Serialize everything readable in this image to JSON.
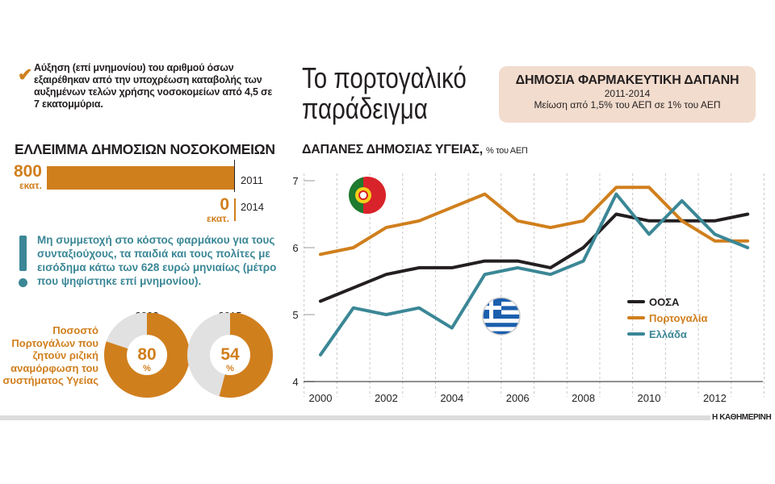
{
  "note1": {
    "icon": "check-icon",
    "text": "Αύξηση (επί μνημονίου) του αριθμού όσων εξαιρέθηκαν από την υποχρέωση καταβολής των αυξημένων τελών χρήσης νοσοκομείων από 4,5 σε 7 εκατομμύρια."
  },
  "deficit": {
    "title": "ΕΛΛΕΙΜΜΑ ΔΗΜΟΣΙΩΝ ΝΟΣΟΚΟΜΕΙΩΝ",
    "rows": [
      {
        "value": "800",
        "unit": "εκατ.",
        "year": "2011"
      },
      {
        "value": "0",
        "unit": "εκατ.",
        "year": "2014"
      }
    ]
  },
  "note2": {
    "icon": "exclamation-icon",
    "text": "Μη συμμετοχή στο κόστος φαρμάκου για τους συνταξιούχους, τα παιδιά και τους πολίτες με εισόδημα κάτω των 628 ευρώ μηνιαίως (μέτρο που ψηφίστηκε επί μνημονίου)."
  },
  "survey": {
    "label": "Ποσοστό Πορτογάλων που ζητούν ριζική αναμόρφωση του συστήματος Υγείας",
    "items": [
      {
        "year": "2002",
        "value": "80",
        "unit": "%"
      },
      {
        "year": "2015",
        "value": "54",
        "unit": "%"
      }
    ]
  },
  "title": {
    "line1": "Το πορτογαλικό",
    "line2": "παράδειγμα"
  },
  "box": {
    "title": "ΔΗΜΟΣΙΑ ΦΑΡΜΑΚΕΥΤΙΚΗ ΔΑΠΑΝΗ",
    "period": "2011-2014",
    "text": "Μείωση από 1,5% του ΑΕΠ σε 1% του ΑΕΠ"
  },
  "brand": "Η ΚΑΘΗΜΕΡΙΝΗ",
  "colors": {
    "orange": "#d07f1d",
    "teal": "#3b8796",
    "black": "#231f20",
    "box": "#f2dccd"
  },
  "chart_data": {
    "type": "line",
    "title": "ΔΑΠΑΝΕΣ ΔΗΜΟΣΙΑΣ ΥΓΕΙΑΣ,",
    "unit": "% του ΑΕΠ",
    "x": [
      2000,
      2001,
      2002,
      2003,
      2004,
      2005,
      2006,
      2007,
      2008,
      2009,
      2010,
      2011,
      2012,
      2013
    ],
    "xticks": [
      "2000",
      "2002",
      "2004",
      "2006",
      "2008",
      "2010",
      "2012"
    ],
    "yticks": [
      "4",
      "5",
      "6",
      "7"
    ],
    "ylim": [
      4,
      7
    ],
    "grid": "vertical-dashed",
    "legend_position": "right",
    "flags": [
      "portugal-flag-icon",
      "greece-flag-icon"
    ],
    "series": [
      {
        "name": "ΟΟΣΑ",
        "color": "#231f20",
        "values": [
          5.2,
          5.4,
          5.6,
          5.7,
          5.7,
          5.8,
          5.8,
          5.7,
          6.0,
          6.5,
          6.4,
          6.4,
          6.4,
          6.5
        ]
      },
      {
        "name": "Πορτογαλία",
        "color": "#d07f1d",
        "values": [
          5.9,
          6.0,
          6.3,
          6.4,
          6.6,
          6.8,
          6.4,
          6.3,
          6.4,
          6.9,
          6.9,
          6.4,
          6.1,
          6.1
        ]
      },
      {
        "name": "Ελλάδα",
        "color": "#3b8796",
        "values": [
          4.4,
          5.1,
          5.0,
          5.1,
          4.8,
          5.6,
          5.7,
          5.6,
          5.8,
          6.8,
          6.2,
          6.7,
          6.2,
          6.0
        ]
      }
    ]
  }
}
